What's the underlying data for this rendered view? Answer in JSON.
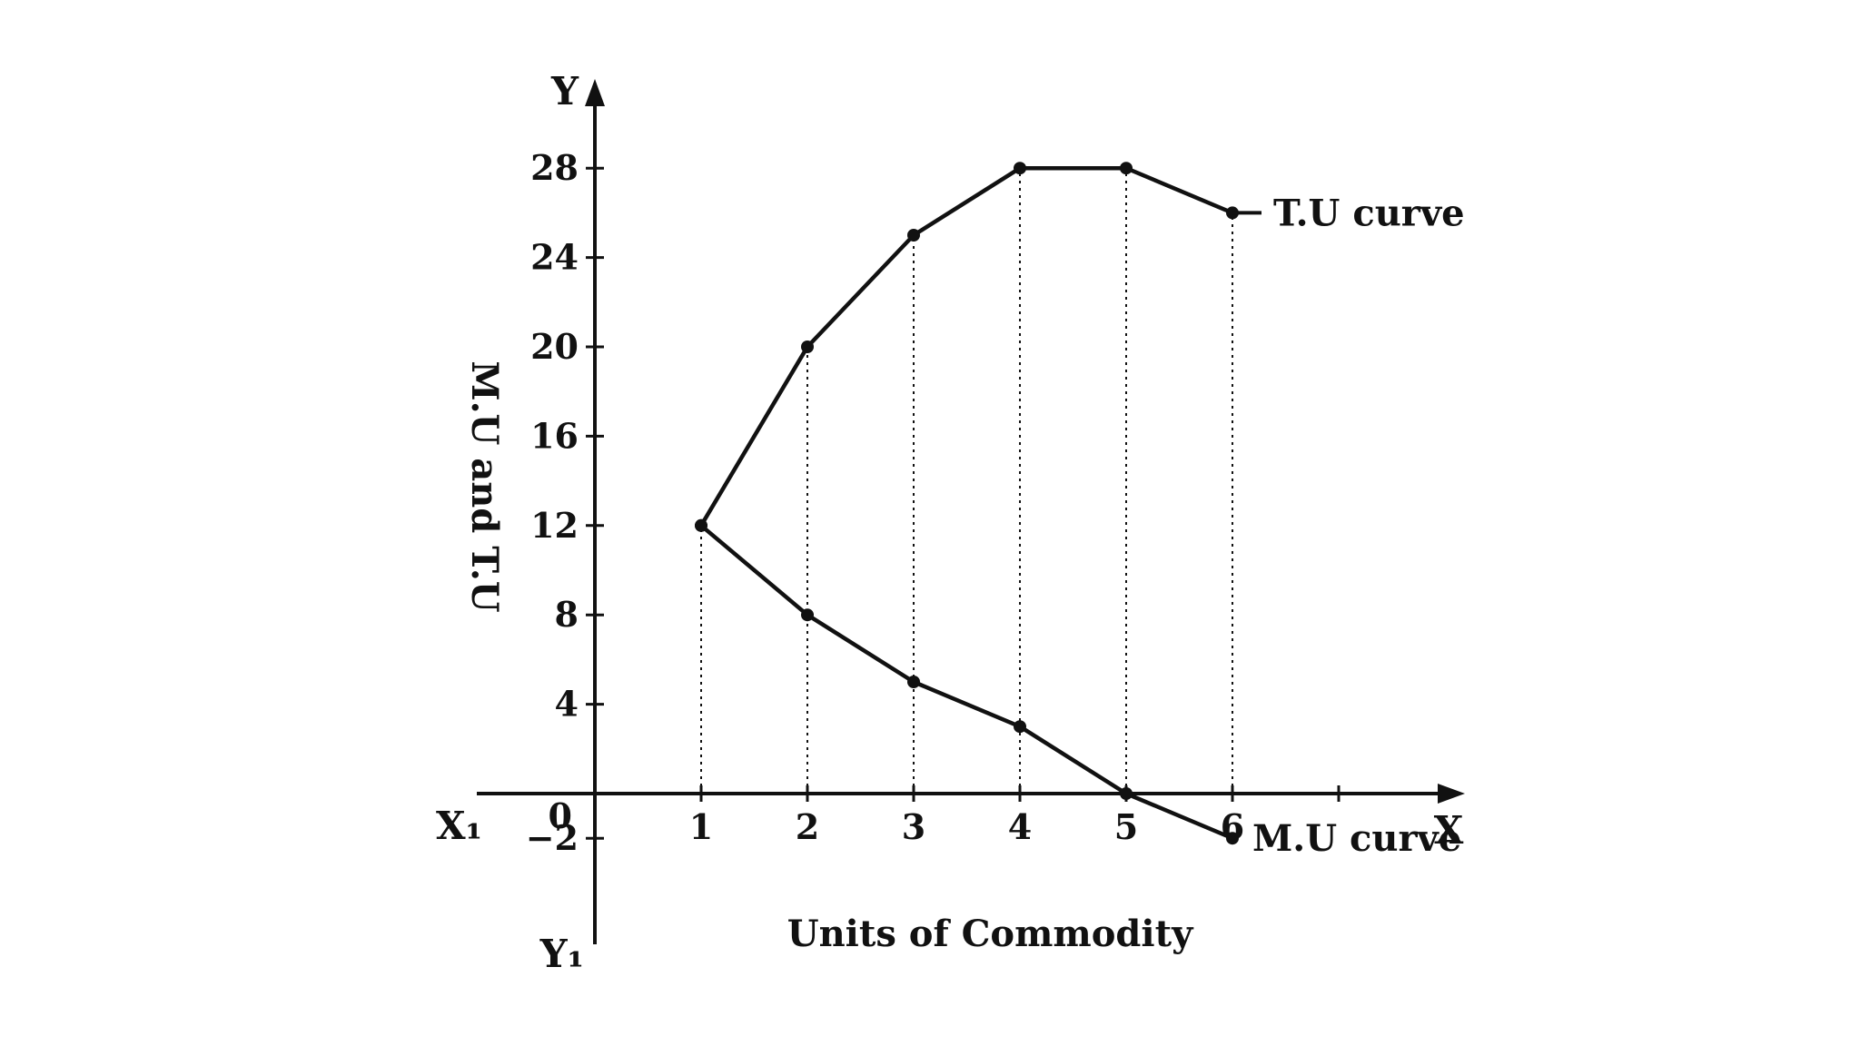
{
  "chart_data": {
    "type": "line",
    "xlabel": "Units of Commodity",
    "ylabel": "M.U and T.U",
    "x": [
      1,
      2,
      3,
      4,
      5,
      6
    ],
    "x_ticks": [
      "1",
      "2",
      "3",
      "4",
      "5",
      "6"
    ],
    "y_ticks": [
      "28",
      "24",
      "20",
      "16",
      "12",
      "8",
      "4",
      "0",
      "-2"
    ],
    "xlim": [
      -1,
      8
    ],
    "ylim": [
      -6,
      32
    ],
    "grid": false,
    "axis_letters": {
      "y": "Y",
      "y_neg": "Y₁",
      "x": "X",
      "x_neg": "X₁"
    },
    "series": [
      {
        "name": "T.U curve",
        "x": [
          1,
          2,
          3,
          4,
          5,
          6
        ],
        "values": [
          12,
          20,
          25,
          28,
          28,
          26
        ]
      },
      {
        "name": "M.U curve",
        "x": [
          1,
          2,
          3,
          4,
          5,
          6
        ],
        "values": [
          12,
          8,
          5,
          3,
          0,
          -2
        ]
      }
    ],
    "colors": {
      "ink": "#111111",
      "background": "#ffffff"
    }
  }
}
